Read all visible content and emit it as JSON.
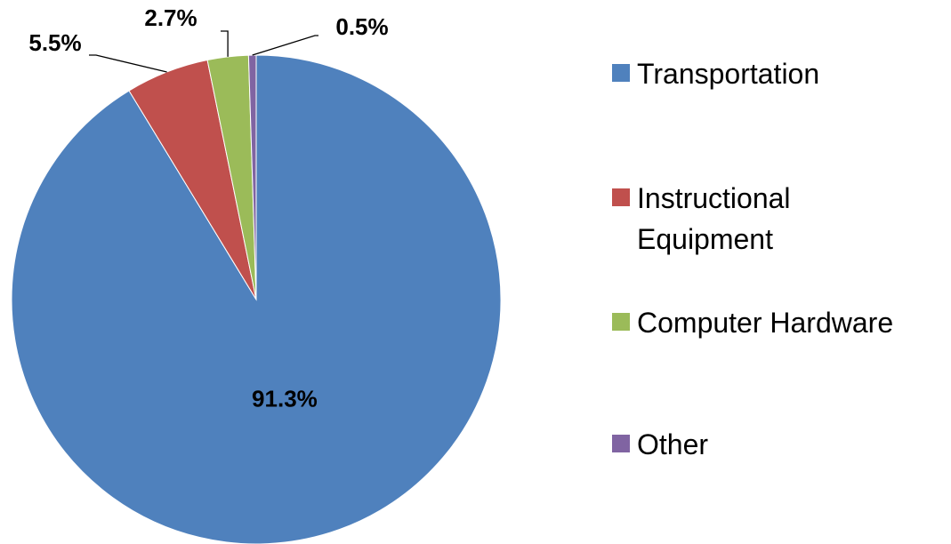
{
  "chart_data": {
    "type": "pie",
    "categories": [
      "Transportation",
      "Instructional Equipment",
      "Computer Hardware",
      "Other"
    ],
    "values": [
      91.3,
      5.5,
      2.7,
      0.5
    ],
    "value_labels": [
      "91.3%",
      "5.5%",
      "2.7%",
      "0.5%"
    ],
    "colors": [
      "#4f81bd",
      "#c0504d",
      "#9bbb59",
      "#8064a2"
    ],
    "legend": "right"
  }
}
